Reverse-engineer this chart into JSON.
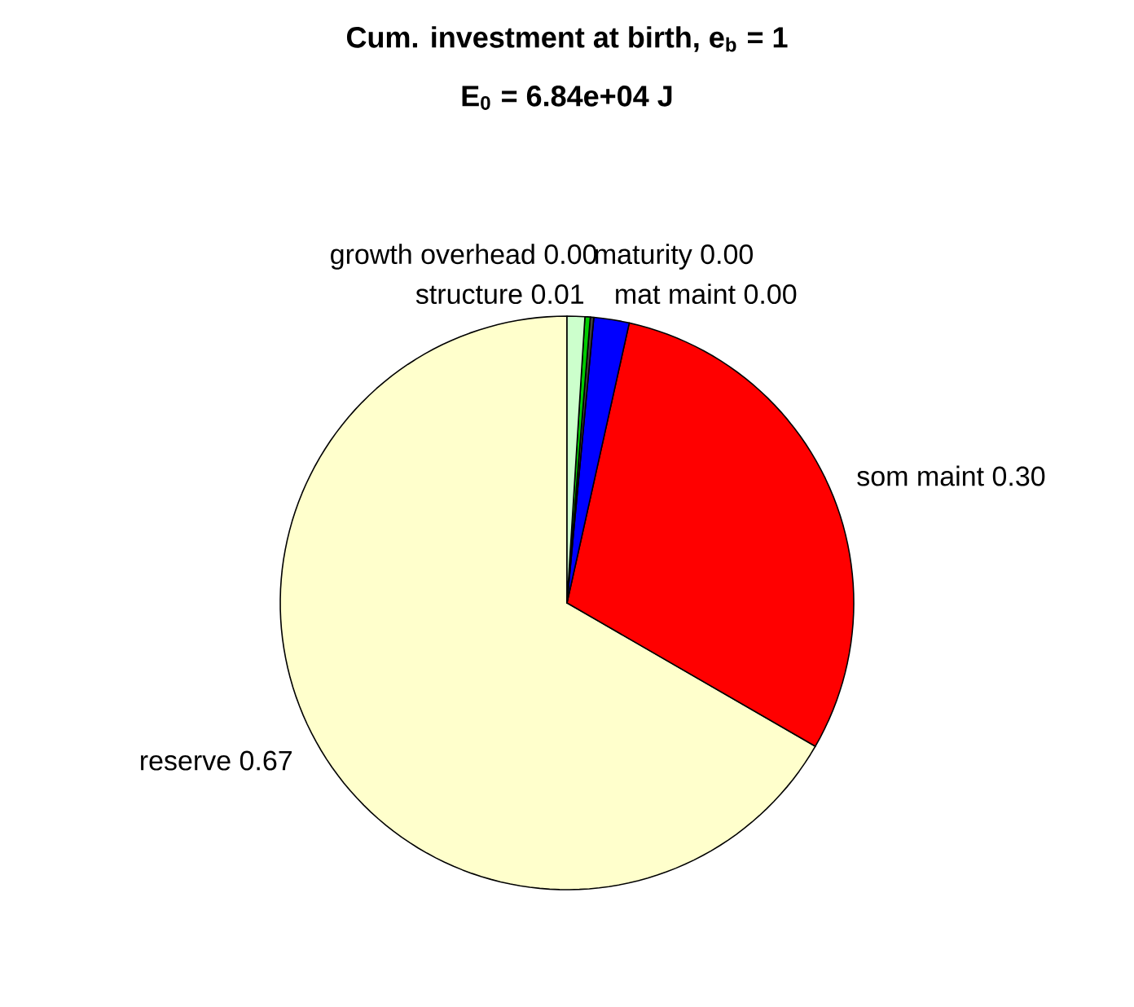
{
  "chart_data": {
    "type": "pie",
    "title": "Cum. investment at birth, e$_{b}$ = 1",
    "subtitle": "E$_{0}$ = 6.84e+04 J",
    "categories": [
      "reserve 0.67",
      "som maint 0.30",
      "mat maint 0.00",
      "maturity 0.00",
      "growth overhead 0.00",
      "structure 0.01"
    ],
    "values": [
      0.67,
      0.3,
      0.02,
      0.002,
      0.003,
      0.01
    ],
    "colors": [
      "#ffffcc",
      "#ff0000",
      "#0000ff",
      "#404040",
      "#00cc00",
      "#ccffcc"
    ],
    "legend": false
  }
}
